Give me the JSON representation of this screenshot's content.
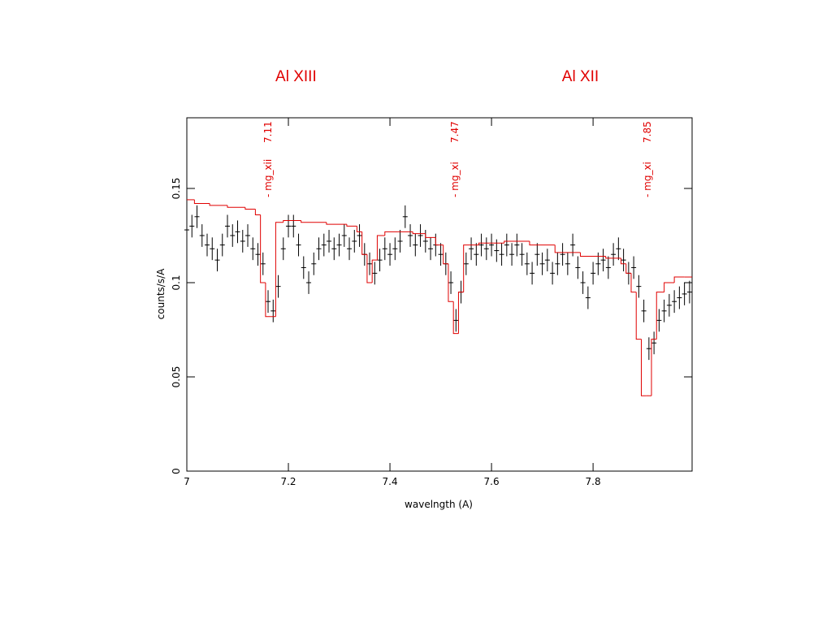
{
  "chart_data": {
    "type": "scatter",
    "annotations": [
      {
        "text": "Al XIII",
        "x": 7.215
      },
      {
        "text": "Al XII",
        "x": 7.775
      }
    ],
    "line_labels": [
      {
        "x": 7.16,
        "name": "- mg_xii",
        "label": "7.11"
      },
      {
        "x": 7.528,
        "name": "- mg_xi",
        "label": "7.47"
      },
      {
        "x": 7.907,
        "name": "- mg_xi",
        "label": "7.85"
      }
    ],
    "xlabel": "wavelngth (A)",
    "ylabel": "counts/s/A",
    "xlim": [
      7,
      7.995
    ],
    "ylim": [
      0,
      0.1875
    ],
    "xticks": [
      7,
      7.2,
      7.4,
      7.6,
      7.8
    ],
    "yticks": [
      0,
      0.05,
      0.1,
      0.15
    ],
    "series": [
      {
        "color": "#000000",
        "yerr": 0.006,
        "x": [
          7.0,
          7.01,
          7.02,
          7.03,
          7.04,
          7.05,
          7.06,
          7.07,
          7.08,
          7.09,
          7.1,
          7.11,
          7.12,
          7.13,
          7.14,
          7.15,
          7.16,
          7.17,
          7.18,
          7.19,
          7.2,
          7.21,
          7.22,
          7.23,
          7.24,
          7.25,
          7.26,
          7.27,
          7.28,
          7.29,
          7.3,
          7.31,
          7.32,
          7.33,
          7.34,
          7.35,
          7.36,
          7.37,
          7.38,
          7.39,
          7.4,
          7.41,
          7.42,
          7.43,
          7.44,
          7.45,
          7.46,
          7.47,
          7.48,
          7.49,
          7.5,
          7.51,
          7.52,
          7.53,
          7.54,
          7.55,
          7.56,
          7.57,
          7.58,
          7.59,
          7.6,
          7.61,
          7.62,
          7.63,
          7.64,
          7.65,
          7.66,
          7.67,
          7.68,
          7.69,
          7.7,
          7.71,
          7.72,
          7.73,
          7.74,
          7.75,
          7.76,
          7.77,
          7.78,
          7.79,
          7.8,
          7.81,
          7.82,
          7.83,
          7.84,
          7.85,
          7.86,
          7.87,
          7.88,
          7.89,
          7.9,
          7.91,
          7.92,
          7.93,
          7.94,
          7.95,
          7.96,
          7.97,
          7.98,
          7.99
        ],
        "values": [
          0.128,
          0.13,
          0.135,
          0.125,
          0.12,
          0.118,
          0.112,
          0.12,
          0.13,
          0.125,
          0.127,
          0.122,
          0.125,
          0.118,
          0.115,
          0.11,
          0.09,
          0.085,
          0.098,
          0.118,
          0.13,
          0.13,
          0.12,
          0.108,
          0.1,
          0.11,
          0.118,
          0.12,
          0.122,
          0.118,
          0.12,
          0.125,
          0.118,
          0.122,
          0.125,
          0.115,
          0.11,
          0.105,
          0.112,
          0.118,
          0.115,
          0.118,
          0.122,
          0.135,
          0.125,
          0.12,
          0.125,
          0.122,
          0.118,
          0.12,
          0.115,
          0.11,
          0.1,
          0.08,
          0.095,
          0.11,
          0.118,
          0.115,
          0.12,
          0.118,
          0.12,
          0.117,
          0.115,
          0.12,
          0.115,
          0.12,
          0.115,
          0.11,
          0.105,
          0.115,
          0.11,
          0.112,
          0.105,
          0.11,
          0.115,
          0.11,
          0.12,
          0.108,
          0.1,
          0.092,
          0.105,
          0.11,
          0.112,
          0.108,
          0.115,
          0.118,
          0.112,
          0.105,
          0.108,
          0.098,
          0.085,
          0.065,
          0.068,
          0.08,
          0.085,
          0.088,
          0.09,
          0.092,
          0.094,
          0.095
        ]
      },
      {
        "color": "#e00000",
        "step": true,
        "x": [
          7.0,
          7.03,
          7.06,
          7.1,
          7.13,
          7.14,
          7.15,
          7.16,
          7.17,
          7.18,
          7.2,
          7.25,
          7.3,
          7.33,
          7.34,
          7.35,
          7.36,
          7.37,
          7.38,
          7.4,
          7.43,
          7.46,
          7.48,
          7.5,
          7.51,
          7.52,
          7.53,
          7.54,
          7.55,
          7.6,
          7.65,
          7.7,
          7.75,
          7.8,
          7.85,
          7.86,
          7.87,
          7.88,
          7.89,
          7.9,
          7.91,
          7.92,
          7.93,
          7.95,
          7.97,
          7.99
        ],
        "values": [
          0.144,
          0.142,
          0.141,
          0.14,
          0.139,
          0.136,
          0.1,
          0.082,
          0.082,
          0.132,
          0.133,
          0.132,
          0.131,
          0.13,
          0.127,
          0.115,
          0.1,
          0.112,
          0.125,
          0.127,
          0.127,
          0.126,
          0.124,
          0.12,
          0.11,
          0.09,
          0.073,
          0.095,
          0.12,
          0.121,
          0.122,
          0.12,
          0.116,
          0.114,
          0.113,
          0.11,
          0.105,
          0.095,
          0.07,
          0.04,
          0.04,
          0.07,
          0.095,
          0.1,
          0.103,
          0.103
        ]
      }
    ]
  }
}
